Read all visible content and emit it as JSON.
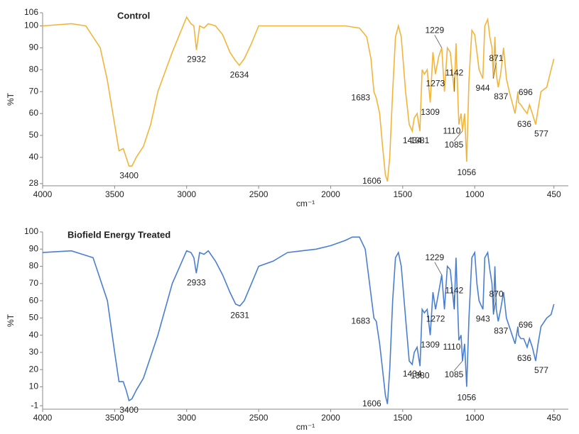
{
  "chart_data": [
    {
      "type": "line",
      "title": "Control",
      "x_label": "cm⁻¹",
      "y_label": "%T",
      "xlim": [
        4000,
        350
      ],
      "xticks": [
        4000,
        3500,
        3000,
        2500,
        2000,
        1500,
        1000,
        450
      ],
      "ylim": [
        27,
        106
      ],
      "yticks": [
        106,
        100,
        90,
        80,
        70,
        60,
        50,
        40,
        28
      ],
      "x": [
        4000,
        3800,
        3700,
        3600,
        3550,
        3500,
        3470,
        3440,
        3420,
        3400,
        3380,
        3350,
        3300,
        3250,
        3200,
        3100,
        3050,
        3000,
        2970,
        2950,
        2932,
        2910,
        2880,
        2850,
        2800,
        2750,
        2700,
        2660,
        2634,
        2600,
        2550,
        2500,
        2450,
        2300,
        2000,
        1900,
        1800,
        1750,
        1720,
        1700,
        1683,
        1660,
        1640,
        1620,
        1606,
        1590,
        1570,
        1550,
        1530,
        1510,
        1480,
        1455,
        1434,
        1420,
        1400,
        1381,
        1365,
        1350,
        1330,
        1309,
        1290,
        1273,
        1250,
        1229,
        1210,
        1190,
        1170,
        1142,
        1130,
        1110,
        1095,
        1085,
        1070,
        1056,
        1040,
        1020,
        1000,
        985,
        970,
        944,
        930,
        910,
        895,
        880,
        871,
        860,
        850,
        837,
        820,
        800,
        780,
        760,
        740,
        720,
        700,
        696,
        680,
        660,
        636,
        620,
        600,
        577,
        560,
        540,
        500,
        470,
        450
      ],
      "series": [
        {
          "name": "Control",
          "color": "#f2b53c",
          "values": [
            100,
            101,
            100,
            90,
            75,
            55,
            43,
            44,
            40,
            36,
            36,
            40,
            45,
            55,
            70,
            88,
            96,
            104,
            101,
            100,
            89,
            100,
            99,
            101,
            100,
            96,
            88,
            84,
            82,
            85,
            92,
            100,
            100,
            100,
            100,
            100,
            99,
            95,
            85,
            70,
            67,
            60,
            45,
            32,
            29,
            40,
            70,
            95,
            100,
            95,
            70,
            55,
            52,
            58,
            60,
            52,
            80,
            78,
            80,
            65,
            88,
            78,
            86,
            90,
            70,
            90,
            88,
            70,
            92,
            55,
            60,
            52,
            60,
            38,
            75,
            98,
            96,
            88,
            80,
            76,
            100,
            103,
            95,
            90,
            76,
            95,
            78,
            72,
            78,
            90,
            76,
            70,
            65,
            60,
            70,
            65,
            64,
            62,
            60,
            64,
            60,
            55,
            62,
            70,
            72,
            80,
            85
          ]
        }
      ],
      "peak_labels": [
        "3400",
        "2932",
        "2634",
        "1683",
        "1606",
        "1434",
        "1381",
        "1309",
        "1273",
        "1229",
        "1142",
        "1110",
        "1085",
        "1056",
        "944",
        "871",
        "837",
        "696",
        "636",
        "577"
      ]
    },
    {
      "type": "line",
      "title": "Biofield Energy Treated",
      "x_label": "cm⁻¹",
      "y_label": "%T",
      "xlim": [
        4000,
        350
      ],
      "xticks": [
        4000,
        3500,
        3000,
        2500,
        2000,
        1500,
        1000,
        450
      ],
      "ylim": [
        -3,
        100
      ],
      "yticks": [
        100,
        90,
        80,
        70,
        60,
        50,
        40,
        30,
        20,
        10,
        -1
      ],
      "x": [
        4000,
        3800,
        3650,
        3550,
        3500,
        3470,
        3440,
        3420,
        3400,
        3380,
        3350,
        3300,
        3200,
        3100,
        3000,
        2970,
        2950,
        2933,
        2910,
        2880,
        2850,
        2800,
        2750,
        2700,
        2660,
        2631,
        2600,
        2550,
        2500,
        2400,
        2300,
        2200,
        2100,
        2000,
        1900,
        1850,
        1800,
        1760,
        1730,
        1700,
        1683,
        1660,
        1640,
        1620,
        1606,
        1590,
        1570,
        1550,
        1530,
        1510,
        1480,
        1455,
        1434,
        1420,
        1400,
        1380,
        1365,
        1350,
        1330,
        1309,
        1290,
        1272,
        1250,
        1229,
        1210,
        1190,
        1170,
        1142,
        1130,
        1110,
        1095,
        1085,
        1070,
        1056,
        1040,
        1020,
        1000,
        985,
        970,
        943,
        930,
        910,
        895,
        880,
        870,
        860,
        850,
        837,
        820,
        800,
        780,
        760,
        740,
        720,
        700,
        696,
        680,
        660,
        636,
        620,
        600,
        577,
        560,
        540,
        500,
        470,
        450
      ],
      "series": [
        {
          "name": "Biofield Energy Treated",
          "color": "#4a7fcf",
          "values": [
            88,
            89,
            85,
            60,
            30,
            13,
            13,
            8,
            2,
            3,
            8,
            15,
            40,
            70,
            89,
            88,
            85,
            76,
            88,
            87,
            89,
            83,
            75,
            65,
            58,
            57,
            60,
            70,
            80,
            83,
            88,
            89,
            90,
            92,
            95,
            97,
            97,
            90,
            70,
            50,
            48,
            35,
            20,
            5,
            0,
            20,
            60,
            85,
            88,
            80,
            50,
            25,
            23,
            30,
            33,
            22,
            55,
            53,
            55,
            40,
            65,
            55,
            65,
            75,
            55,
            80,
            78,
            55,
            85,
            37,
            40,
            25,
            35,
            10,
            50,
            85,
            88,
            70,
            60,
            55,
            85,
            88,
            78,
            70,
            52,
            80,
            55,
            48,
            55,
            65,
            50,
            45,
            40,
            35,
            45,
            40,
            38,
            38,
            33,
            38,
            33,
            25,
            35,
            45,
            50,
            52,
            58
          ]
        }
      ],
      "peak_labels": [
        "3400",
        "2933",
        "2631",
        "1683",
        "1606",
        "1434",
        "1380",
        "1309",
        "1272",
        "1229",
        "1142",
        "1110",
        "1085",
        "1056",
        "943",
        "870",
        "837",
        "696",
        "636",
        "577"
      ]
    }
  ]
}
